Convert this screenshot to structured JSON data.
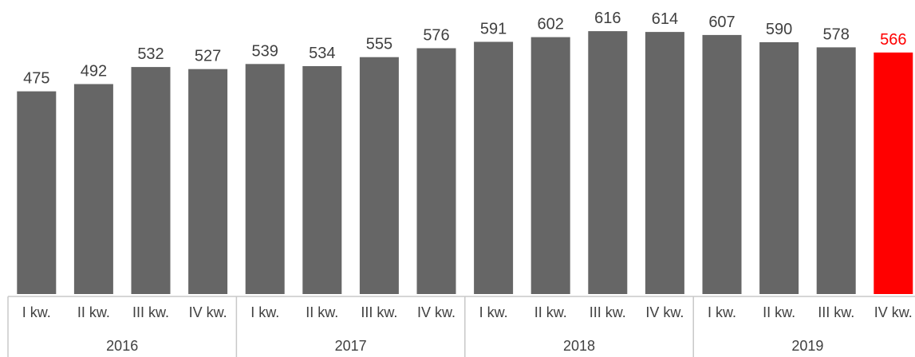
{
  "chart_data": {
    "type": "bar",
    "title": "",
    "xlabel": "",
    "ylabel": "",
    "ylim": [
      0,
      650
    ],
    "grid": false,
    "legend": "none",
    "categories": [
      "I kw.",
      "II kw.",
      "III kw.",
      "IV kw.",
      "I kw.",
      "II kw.",
      "III kw.",
      "IV kw.",
      "I kw.",
      "II kw.",
      "III kw.",
      "IV kw.",
      "I kw.",
      "II kw.",
      "III kw.",
      "IV kw."
    ],
    "groups": [
      {
        "label": "2016",
        "count": 4
      },
      {
        "label": "2017",
        "count": 4
      },
      {
        "label": "2018",
        "count": 4
      },
      {
        "label": "2019",
        "count": 4
      }
    ],
    "values": [
      475,
      492,
      532,
      527,
      539,
      534,
      555,
      576,
      591,
      602,
      616,
      614,
      607,
      590,
      578,
      566
    ],
    "highlight_index": 15
  },
  "colors": {
    "bar": "#666666",
    "highlight": "#ff0000",
    "label": "#404040",
    "axis": "#c8c8c8"
  }
}
